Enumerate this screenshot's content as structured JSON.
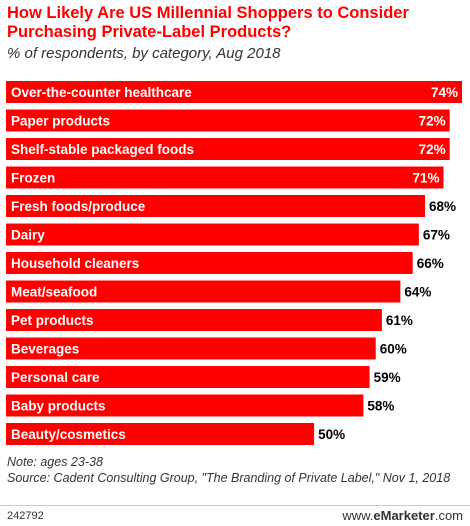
{
  "header": {
    "title": "How Likely Are US Millennial Shoppers to Consider Purchasing Private-Label Products?",
    "subtitle": "% of respondents, by category, Aug 2018"
  },
  "chart_data": {
    "type": "bar",
    "orientation": "horizontal",
    "categories": [
      "Over-the-counter healthcare",
      "Paper products",
      "Shelf-stable packaged foods",
      "Frozen",
      "Fresh foods/produce",
      "Dairy",
      "Household cleaners",
      "Meat/seafood",
      "Pet products",
      "Beverages",
      "Personal care",
      "Baby products",
      "Beauty/cosmetics"
    ],
    "values": [
      74,
      72,
      72,
      71,
      68,
      67,
      66,
      64,
      61,
      60,
      59,
      58,
      50
    ],
    "value_labels": [
      "74%",
      "72%",
      "72%",
      "71%",
      "68%",
      "67%",
      "66%",
      "64%",
      "61%",
      "60%",
      "59%",
      "58%",
      "50%"
    ],
    "bar_color": "#ff0000",
    "label_color_inside": "#ffffff",
    "label_color_outside": "#000000",
    "xlim": [
      0,
      74
    ],
    "grid": false,
    "legend": "none"
  },
  "notes": {
    "note": "Note: ages 23-38",
    "source": "Source: Cadent Consulting Group, \"The Branding of Private Label,\" Nov 1, 2018"
  },
  "footer": {
    "id": "242792",
    "logo_prefix": "www.",
    "logo_brand_e": "e",
    "logo_brand_rest": "Marketer",
    "logo_suffix": ".com"
  }
}
